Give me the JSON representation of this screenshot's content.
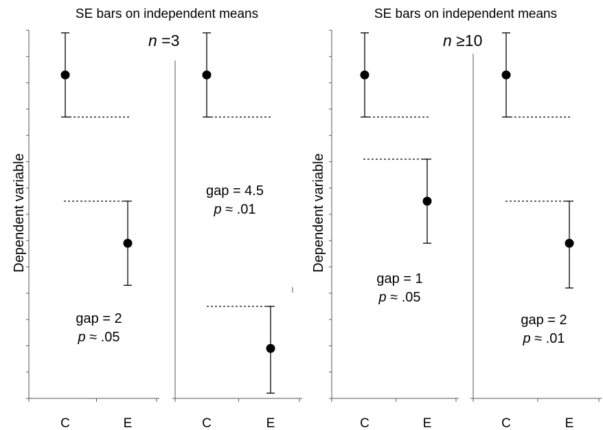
{
  "titles": {
    "left": "SE bars on independent means",
    "right": "SE bars on independent means"
  },
  "n_labels": {
    "left": {
      "italic": "n",
      "rest": " =3"
    },
    "right": {
      "italic": "n",
      "rest": " ≥10"
    }
  },
  "y_axis_label": "Dependent variable",
  "chart_data": [
    {
      "type": "scatter",
      "group": "n = 3",
      "categories": [
        "C",
        "E"
      ],
      "ylim": [
        0,
        14
      ],
      "series": [
        {
          "x": "C",
          "y": 12.3,
          "se_low": 10.7,
          "se_high": 13.9
        },
        {
          "x": "E",
          "y": 5.9,
          "se_low": 4.3,
          "se_high": 7.5
        }
      ],
      "reference_lines": [
        10.7,
        7.5
      ],
      "annotations": [
        "gap = 2",
        "p ≈ .05"
      ]
    },
    {
      "type": "scatter",
      "group": "n = 3",
      "categories": [
        "C",
        "E"
      ],
      "ylim": [
        0,
        14
      ],
      "series": [
        {
          "x": "C",
          "y": 12.3,
          "se_low": 10.7,
          "se_high": 13.9
        },
        {
          "x": "E",
          "y": 1.9,
          "se_low": 0.2,
          "se_high": 3.5
        }
      ],
      "reference_lines": [
        10.7,
        3.5
      ],
      "annotations": [
        "gap = 4.5",
        "p ≈ .01"
      ]
    },
    {
      "type": "scatter",
      "group": "n ≥ 10",
      "categories": [
        "C",
        "E"
      ],
      "ylim": [
        0,
        14
      ],
      "series": [
        {
          "x": "C",
          "y": 12.3,
          "se_low": 10.7,
          "se_high": 13.9
        },
        {
          "x": "E",
          "y": 7.5,
          "se_low": 5.9,
          "se_high": 9.1
        }
      ],
      "reference_lines": [
        10.7,
        9.1
      ],
      "annotations": [
        "gap = 1",
        "p ≈ .05"
      ]
    },
    {
      "type": "scatter",
      "group": "n ≥ 10",
      "categories": [
        "C",
        "E"
      ],
      "ylim": [
        0,
        14
      ],
      "series": [
        {
          "x": "C",
          "y": 12.3,
          "se_low": 10.7,
          "se_high": 13.9
        },
        {
          "x": "E",
          "y": 5.9,
          "se_low": 4.2,
          "se_high": 7.5
        }
      ],
      "reference_lines": [
        10.7,
        7.5
      ],
      "annotations": [
        "gap = 2",
        "p ≈ .01"
      ]
    }
  ]
}
